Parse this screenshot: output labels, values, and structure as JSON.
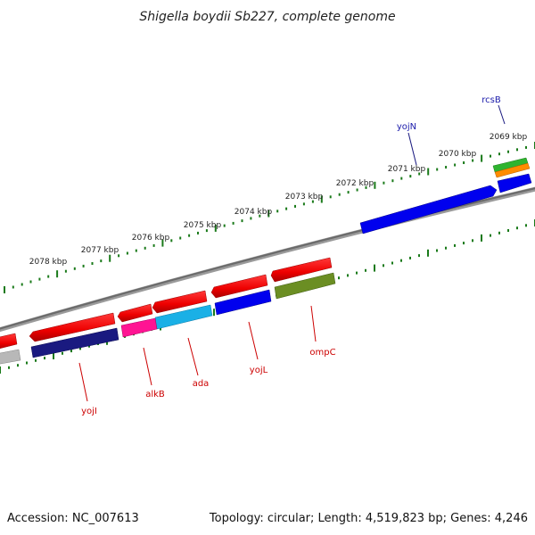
{
  "header": {
    "title": "Shigella boydii Sb227, complete genome"
  },
  "footer": {
    "accession": "Accession: NC_007613",
    "topology": "Topology: circular; Length: 4,519,823 bp; Genes: 4,246"
  },
  "colors": {
    "backbone": "#808080",
    "tick": "#1a7a1a",
    "plus_label": "#1a1aaa",
    "minus_label": "#cc0000"
  },
  "scale_ticks": [
    {
      "label": "2069 kbp"
    },
    {
      "label": "2070 kbp"
    },
    {
      "label": "2071 kbp"
    },
    {
      "label": "2072 kbp"
    },
    {
      "label": "2073 kbp"
    },
    {
      "label": "2074 kbp"
    },
    {
      "label": "2075 kbp"
    },
    {
      "label": "2076 kbp"
    },
    {
      "label": "2077 kbp"
    },
    {
      "label": "2078 kbp"
    }
  ],
  "genes": [
    {
      "name": "rcsB",
      "strand": "+",
      "color": "#2fb42f"
    },
    {
      "name": "yojN",
      "strand": "+",
      "color": "#0000ee"
    },
    {
      "name": "ompC",
      "strand": "-",
      "color": "#6b8e23"
    },
    {
      "name": "yojL",
      "strand": "-",
      "color": "#0000ee"
    },
    {
      "name": "ada",
      "strand": "-",
      "color": "#1ab0e6"
    },
    {
      "name": "alkB",
      "strand": "-",
      "color": "#ff1493"
    },
    {
      "name": "yojI",
      "strand": "-",
      "color": "#1a1a80"
    }
  ]
}
